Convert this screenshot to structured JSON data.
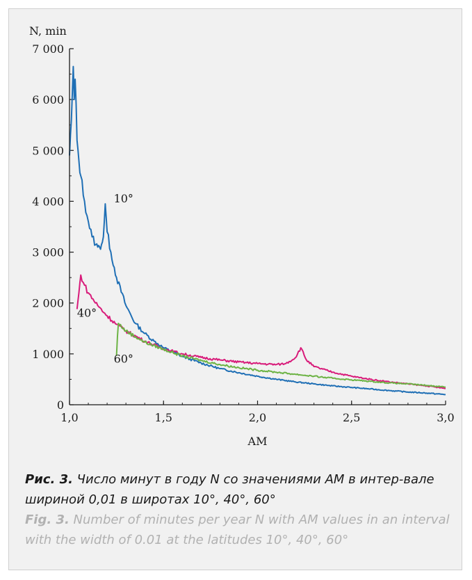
{
  "chart_data": {
    "type": "line",
    "ylabel": "N, min",
    "xlabel": "AM",
    "xlim": [
      1.0,
      3.0
    ],
    "ylim": [
      0,
      7000
    ],
    "x_ticks": [
      "1,0",
      "1,5",
      "2,0",
      "2,5",
      "3,0"
    ],
    "y_ticks": [
      "0",
      "1 000",
      "2 000",
      "3 000",
      "4 000",
      "5 000",
      "6 000",
      "7 000"
    ],
    "grid": false,
    "series": [
      {
        "name": "10°",
        "color": "#1f6fb5",
        "points": [
          [
            1.0,
            4900
          ],
          [
            1.01,
            5600
          ],
          [
            1.02,
            6650
          ],
          [
            1.025,
            6000
          ],
          [
            1.03,
            6400
          ],
          [
            1.04,
            5200
          ],
          [
            1.05,
            4800
          ],
          [
            1.06,
            4500
          ],
          [
            1.08,
            4000
          ],
          [
            1.1,
            3600
          ],
          [
            1.12,
            3300
          ],
          [
            1.14,
            3150
          ],
          [
            1.15,
            3100
          ],
          [
            1.16,
            3100
          ],
          [
            1.17,
            3150
          ],
          [
            1.18,
            3300
          ],
          [
            1.19,
            3950
          ],
          [
            1.2,
            3400
          ],
          [
            1.22,
            3000
          ],
          [
            1.25,
            2500
          ],
          [
            1.3,
            1950
          ],
          [
            1.35,
            1600
          ],
          [
            1.4,
            1400
          ],
          [
            1.45,
            1250
          ],
          [
            1.5,
            1120
          ],
          [
            1.6,
            950
          ],
          [
            1.7,
            820
          ],
          [
            1.8,
            710
          ],
          [
            1.9,
            630
          ],
          [
            2.0,
            560
          ],
          [
            2.1,
            500
          ],
          [
            2.2,
            450
          ],
          [
            2.3,
            410
          ],
          [
            2.4,
            370
          ],
          [
            2.5,
            340
          ],
          [
            2.6,
            310
          ],
          [
            2.7,
            280
          ],
          [
            2.8,
            250
          ],
          [
            2.9,
            230
          ],
          [
            3.0,
            200
          ]
        ]
      },
      {
        "name": "40°",
        "color": "#d81b7a",
        "points": [
          [
            1.04,
            1880
          ],
          [
            1.05,
            2200
          ],
          [
            1.06,
            2550
          ],
          [
            1.08,
            2350
          ],
          [
            1.1,
            2200
          ],
          [
            1.15,
            1950
          ],
          [
            1.2,
            1750
          ],
          [
            1.25,
            1580
          ],
          [
            1.3,
            1450
          ],
          [
            1.4,
            1250
          ],
          [
            1.5,
            1100
          ],
          [
            1.6,
            1000
          ],
          [
            1.7,
            930
          ],
          [
            1.8,
            880
          ],
          [
            1.9,
            840
          ],
          [
            2.0,
            810
          ],
          [
            2.1,
            790
          ],
          [
            2.15,
            810
          ],
          [
            2.2,
            920
          ],
          [
            2.23,
            1120
          ],
          [
            2.26,
            880
          ],
          [
            2.3,
            750
          ],
          [
            2.4,
            640
          ],
          [
            2.5,
            560
          ],
          [
            2.6,
            500
          ],
          [
            2.7,
            450
          ],
          [
            2.8,
            410
          ],
          [
            2.9,
            370
          ],
          [
            3.0,
            320
          ]
        ]
      },
      {
        "name": "60°",
        "color": "#6cb344",
        "points": [
          [
            1.25,
            960
          ],
          [
            1.255,
            1350
          ],
          [
            1.26,
            1600
          ],
          [
            1.3,
            1450
          ],
          [
            1.4,
            1230
          ],
          [
            1.5,
            1090
          ],
          [
            1.6,
            960
          ],
          [
            1.7,
            870
          ],
          [
            1.8,
            790
          ],
          [
            1.9,
            730
          ],
          [
            2.0,
            680
          ],
          [
            2.1,
            640
          ],
          [
            2.2,
            600
          ],
          [
            2.3,
            560
          ],
          [
            2.4,
            520
          ],
          [
            2.5,
            490
          ],
          [
            2.6,
            460
          ],
          [
            2.7,
            430
          ],
          [
            2.8,
            410
          ],
          [
            2.9,
            380
          ],
          [
            3.0,
            350
          ]
        ]
      }
    ]
  },
  "caption": {
    "ru_label": "Рис. 3.",
    "ru_text": " Число минут в году N со значениями AM в интер-вале шириной 0,01 в широтах 10°, 40°, 60°",
    "en_label": "Fig. 3.",
    "en_text": " Number of minutes per year N with AM values in an interval with the width of 0.01 at the latitudes 10°, 40°, 60°"
  }
}
